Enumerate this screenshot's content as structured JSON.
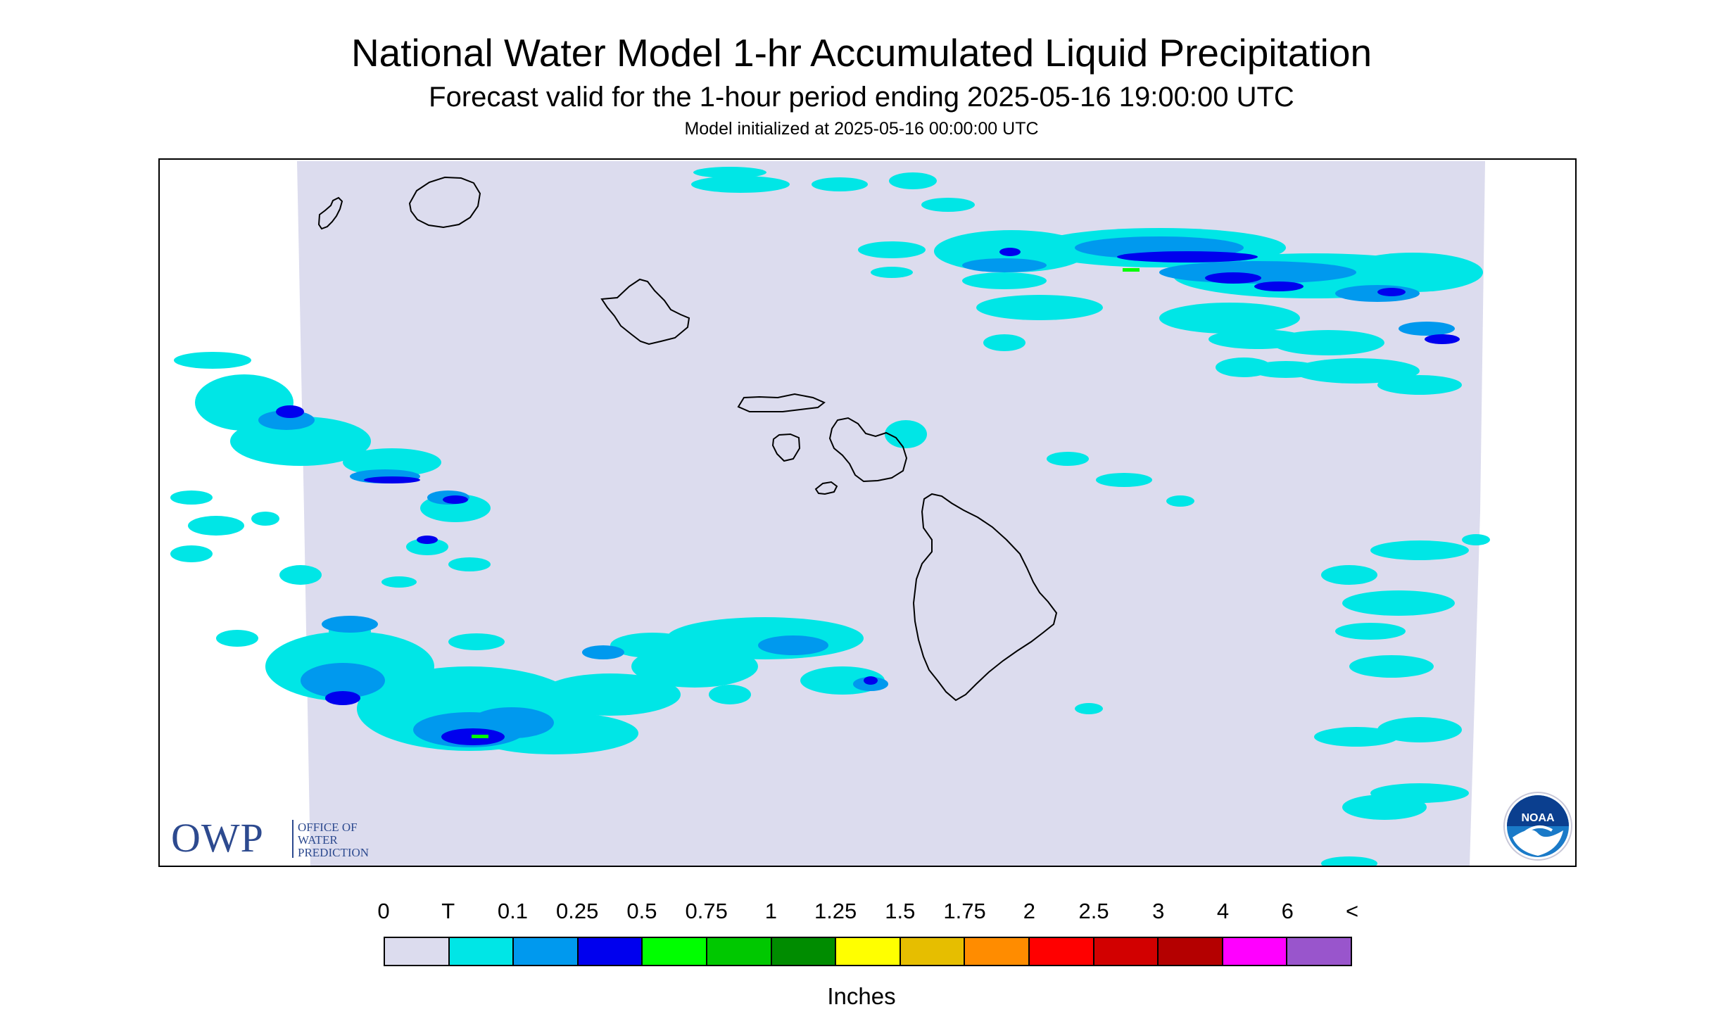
{
  "title": "National Water Model 1-hr Accumulated Liquid Precipitation",
  "subtitle": "Forecast valid for the 1-hour period ending 2025-05-16 19:00:00 UTC",
  "init": "Model initialized at 2025-05-16 00:00:00 UTC",
  "map": {
    "region": "Hawaiian Islands",
    "background_color": "#dcdcee",
    "coastline_color": "#000000",
    "islands": [
      "Niihau",
      "Kauai",
      "Oahu",
      "Molokai",
      "Lanai",
      "Maui",
      "Kahoolawe",
      "Hawaii"
    ]
  },
  "owp": {
    "logo_text": "OWP",
    "line1": "OFFICE OF",
    "line2": "WATER",
    "line3": "PREDICTION",
    "color": "#2d4a8f"
  },
  "noaa": {
    "logo_text": "NOAA"
  },
  "legend": {
    "labels": [
      "0",
      "T",
      "0.1",
      "0.25",
      "0.5",
      "0.75",
      "1",
      "1.25",
      "1.5",
      "1.75",
      "2",
      "2.5",
      "3",
      "4",
      "6",
      "<"
    ],
    "colors": [
      "#dcdcee",
      "#00e6e6",
      "#0099ee",
      "#0000ee",
      "#00ff00",
      "#00c800",
      "#008c00",
      "#ffff00",
      "#e6be00",
      "#ff8c00",
      "#ff0000",
      "#d20000",
      "#b40000",
      "#ff00ff",
      "#9955cc"
    ],
    "units": "Inches"
  }
}
